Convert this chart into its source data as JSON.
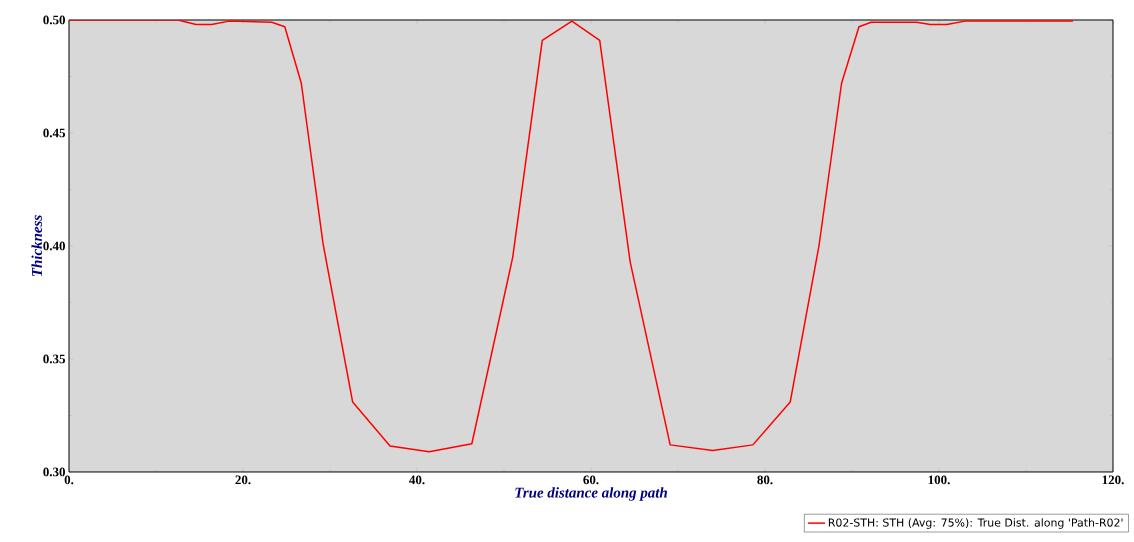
{
  "chart_data": {
    "type": "line",
    "xlabel": "True distance along path",
    "ylabel": "Thickness",
    "xlim": [
      0,
      120
    ],
    "ylim": [
      0.3,
      0.5
    ],
    "xticks": [
      {
        "value": 0,
        "label": "0."
      },
      {
        "value": 20,
        "label": "20."
      },
      {
        "value": 40,
        "label": "40."
      },
      {
        "value": 60,
        "label": "60."
      },
      {
        "value": 80,
        "label": "80."
      },
      {
        "value": 100,
        "label": "100."
      },
      {
        "value": 120,
        "label": "120."
      }
    ],
    "yticks": [
      {
        "value": 0.3,
        "label": "0.30"
      },
      {
        "value": 0.35,
        "label": "0.35"
      },
      {
        "value": 0.4,
        "label": "0.40"
      },
      {
        "value": 0.45,
        "label": "0.45"
      },
      {
        "value": 0.5,
        "label": "0.50"
      }
    ],
    "grid": false,
    "legend": "bottom right",
    "marker": "none",
    "line_style": "solid",
    "series": [
      {
        "name": "R02-STH: STH (Avg: 75%): True Dist. along 'Path-R02'",
        "color": "#ff0000",
        "x": [
          0,
          12.5,
          14.6,
          16.4,
          18.4,
          23.3,
          24.8,
          26.7,
          29.2,
          32.6,
          36.9,
          41.4,
          46.3,
          51.0,
          54.4,
          57.8,
          61.0,
          64.5,
          69.1,
          74.0,
          78.6,
          82.9,
          86.2,
          88.8,
          90.8,
          92.2,
          97.4,
          99.0,
          100.9,
          103.0,
          115.4
        ],
        "values": [
          0.5,
          0.5,
          0.498,
          0.498,
          0.4995,
          0.499,
          0.497,
          0.472,
          0.401,
          0.331,
          0.3115,
          0.309,
          0.3125,
          0.395,
          0.491,
          0.4995,
          0.491,
          0.393,
          0.312,
          0.3095,
          0.312,
          0.331,
          0.4,
          0.472,
          0.497,
          0.499,
          0.499,
          0.498,
          0.498,
          0.4995,
          0.4995
        ]
      }
    ]
  }
}
